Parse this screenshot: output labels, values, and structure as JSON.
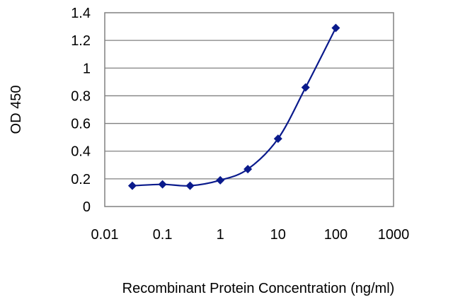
{
  "chart_data": {
    "type": "line",
    "title": "",
    "xlabel": "Recombinant Protein Concentration (ng/ml)",
    "ylabel": "OD 450",
    "xscale": "log",
    "xlim": [
      0.01,
      1000
    ],
    "ylim": [
      0,
      1.4
    ],
    "grid": "horizontal",
    "xticks": [
      0.01,
      0.1,
      1,
      10,
      100,
      1000
    ],
    "xtick_labels": [
      "0.01",
      "0.1",
      "1",
      "10",
      "100",
      "1000"
    ],
    "yticks": [
      0,
      0.2,
      0.4,
      0.6,
      0.8,
      1,
      1.2,
      1.4
    ],
    "ytick_labels": [
      "0",
      "0.2",
      "0.4",
      "0.6",
      "0.8",
      "1",
      "1.2",
      "1.4"
    ],
    "series": [
      {
        "x": [
          0.03,
          0.1,
          0.3,
          1,
          3,
          10,
          30,
          100
        ],
        "y": [
          0.15,
          0.16,
          0.15,
          0.19,
          0.27,
          0.49,
          0.86,
          1.29
        ]
      }
    ],
    "colors": {
      "series": "#0a1a8c",
      "grid": "#808080",
      "frame": "#808080"
    }
  }
}
